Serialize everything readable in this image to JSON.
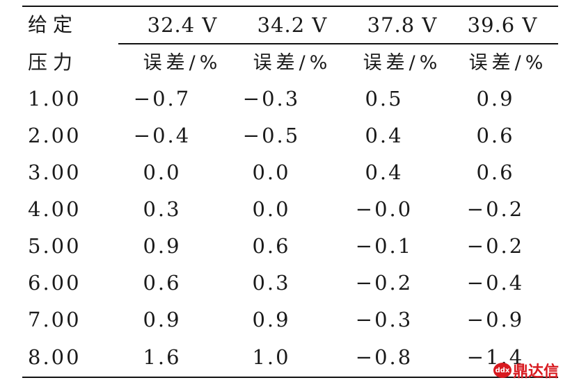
{
  "header": {
    "row1_label": "给定",
    "row2_label": "压力",
    "voltages": [
      "32.4 V",
      "34.2 V",
      "37.8 V",
      "39.6 V"
    ],
    "error_label": "误差/%"
  },
  "rows": [
    {
      "pressure": "1.00",
      "values": [
        "−0.7",
        "−0.3",
        "0.5",
        "0.9"
      ]
    },
    {
      "pressure": "2.00",
      "values": [
        "−0.4",
        "−0.5",
        "0.4",
        "0.6"
      ]
    },
    {
      "pressure": "3.00",
      "values": [
        "0.0",
        "0.0",
        "0.4",
        "0.6"
      ]
    },
    {
      "pressure": "4.00",
      "values": [
        "0.3",
        "0.0",
        "−0.0",
        "−0.2"
      ]
    },
    {
      "pressure": "5.00",
      "values": [
        "0.9",
        "0.6",
        "−0.1",
        "−0.2"
      ]
    },
    {
      "pressure": "6.00",
      "values": [
        "0.6",
        "0.3",
        "−0.2",
        "−0.4"
      ]
    },
    {
      "pressure": "7.00",
      "values": [
        "0.9",
        "0.9",
        "−0.3",
        "−0.9"
      ]
    },
    {
      "pressure": "8.00",
      "values": [
        "1.6",
        "1.0",
        "−0.8",
        "−1.4"
      ]
    }
  ],
  "watermark": {
    "text": "鼎达信",
    "badge": "ddx",
    "color": "#d8191f"
  }
}
